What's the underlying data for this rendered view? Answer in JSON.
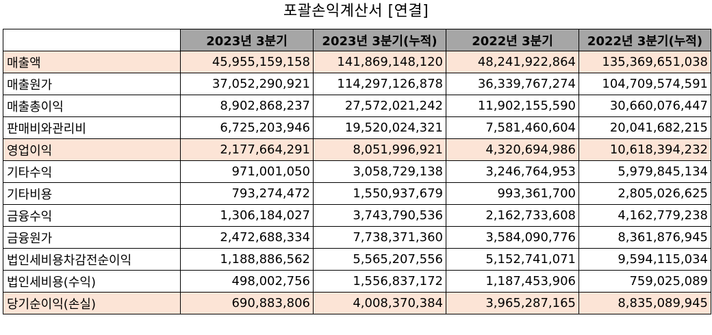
{
  "title": "포괄손익계산서 [연결]",
  "table": {
    "headers": [
      "",
      "2023년 3분기",
      "2023년 3분기(누적)",
      "2022년 3분기",
      "2022년 3분기(누적)"
    ],
    "highlight_color": "#fce4d6",
    "header_color": "#a6a6a6",
    "rows": [
      {
        "label": "매출액",
        "highlight": true,
        "values": [
          "45,955,159,158",
          "141,869,148,120",
          "48,241,922,864",
          "135,369,651,038"
        ]
      },
      {
        "label": "매출원가",
        "highlight": false,
        "values": [
          "37,052,290,921",
          "114,297,126,878",
          "36,339,767,274",
          "104,709,574,591"
        ]
      },
      {
        "label": "매출총이익",
        "highlight": false,
        "values": [
          "8,902,868,237",
          "27,572,021,242",
          "11,902,155,590",
          "30,660,076,447"
        ]
      },
      {
        "label": "판매비와관리비",
        "highlight": false,
        "values": [
          "6,725,203,946",
          "19,520,024,321",
          "7,581,460,604",
          "20,041,682,215"
        ]
      },
      {
        "label": "영업이익",
        "highlight": true,
        "values": [
          "2,177,664,291",
          "8,051,996,921",
          "4,320,694,986",
          "10,618,394,232"
        ]
      },
      {
        "label": "기타수익",
        "highlight": false,
        "values": [
          "971,001,050",
          "3,058,729,138",
          "3,246,764,953",
          "5,979,845,134"
        ]
      },
      {
        "label": "기타비용",
        "highlight": false,
        "values": [
          "793,274,472",
          "1,550,937,679",
          "993,361,700",
          "2,805,026,625"
        ]
      },
      {
        "label": "금융수익",
        "highlight": false,
        "values": [
          "1,306,184,027",
          "3,743,790,536",
          "2,162,733,608",
          "4,162,779,238"
        ]
      },
      {
        "label": "금융원가",
        "highlight": false,
        "values": [
          "2,472,688,334",
          "7,738,371,360",
          "3,584,090,776",
          "8,361,876,945"
        ]
      },
      {
        "label": "법인세비용차감전순이익",
        "highlight": false,
        "values": [
          "1,188,886,562",
          "5,565,207,556",
          "5,152,741,071",
          "9,594,115,034"
        ]
      },
      {
        "label": "법인세비용(수익)",
        "highlight": false,
        "values": [
          "498,002,756",
          "1,556,837,172",
          "1,187,453,906",
          "759,025,089"
        ]
      },
      {
        "label": "당기순이익(손실)",
        "highlight": true,
        "values": [
          "690,883,806",
          "4,008,370,384",
          "3,965,287,165",
          "8,835,089,945"
        ]
      }
    ]
  }
}
